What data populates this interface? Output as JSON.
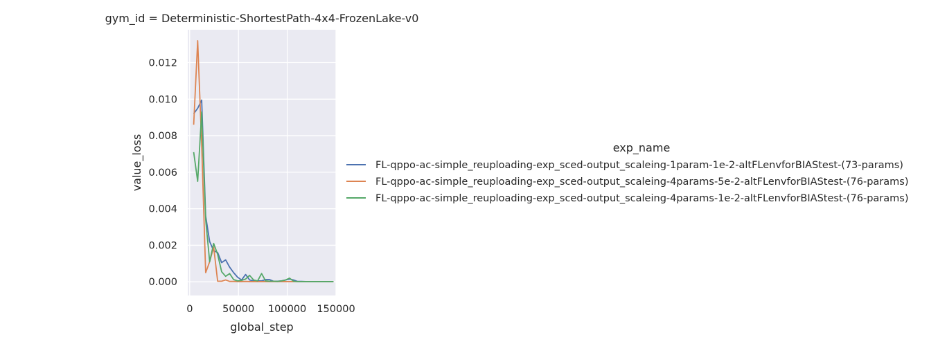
{
  "chart_data": {
    "type": "line",
    "title": "gym_id = Deterministic-ShortestPath-4x4-FrozenLake-v0",
    "xlabel": "global_step",
    "ylabel": "value_loss",
    "xlim": [
      -2000,
      150000
    ],
    "ylim": [
      -0.00075,
      0.0138
    ],
    "xticks": [
      0,
      50000,
      100000,
      150000
    ],
    "xtick_labels": [
      "0",
      "50000",
      "100000",
      "150000"
    ],
    "yticks": [
      0,
      0.002,
      0.004,
      0.006,
      0.008,
      0.01,
      0.012
    ],
    "ytick_labels": [
      "0.000",
      "0.002",
      "0.004",
      "0.006",
      "0.008",
      "0.010",
      "0.012"
    ],
    "grid": true,
    "legend_title": "exp_name",
    "legend_position": "right",
    "series": [
      {
        "name": "FL-qppo-ac-simple_reuploading-exp_sced-output_scaleing-1param-1e-2-altFLenvforBIAStest-(73-params)",
        "color": "#4c72b0",
        "x": [
          4096,
          8192,
          12288,
          16384,
          20480,
          24576,
          28672,
          32768,
          36864,
          40960,
          45056,
          49152,
          53248,
          57344,
          61440,
          65536,
          69632,
          73728,
          77824,
          81920,
          86016,
          90112,
          94208,
          98304,
          102400,
          106496,
          110592,
          114688,
          118784,
          122880,
          126976,
          131072,
          135168,
          139264,
          143360,
          147456
        ],
        "y": [
          0.0092,
          0.0095,
          0.00995,
          0.0036,
          0.0022,
          0.0017,
          0.0016,
          0.00105,
          0.0012,
          0.0008,
          0.0005,
          0.00025,
          0.0001,
          0.0004,
          0.0001,
          5e-05,
          5e-05,
          5e-05,
          0.00012,
          0.00012,
          3e-05,
          3e-05,
          5e-05,
          0.0001,
          0.00015,
          0.0001,
          2e-05,
          2e-05,
          1e-05,
          1e-05,
          1e-05,
          1e-05,
          1e-05,
          1e-05,
          1e-05,
          1e-05
        ]
      },
      {
        "name": "FL-qppo-ac-simple_reuploading-exp_sced-output_scaleing-4params-5e-2-altFLenvforBIAStest-(76-params)",
        "color": "#dd8452",
        "x": [
          4096,
          8192,
          12288,
          16384,
          20480,
          24576,
          28672,
          32768,
          36864,
          40960,
          45056,
          49152,
          53248,
          57344,
          61440,
          65536,
          69632,
          73728,
          77824,
          81920,
          86016,
          90112,
          94208,
          98304,
          102400,
          106496,
          110592,
          114688,
          118784,
          122880,
          126976,
          131072,
          135168,
          139264,
          143360,
          147456
        ],
        "y": [
          0.0086,
          0.0132,
          0.0075,
          0.0005,
          0.0011,
          0.0019,
          3e-05,
          3e-05,
          0.0001,
          2e-05,
          2e-05,
          1e-05,
          1e-05,
          2e-05,
          1e-05,
          1e-05,
          1e-05,
          1e-05,
          1e-05,
          1e-05,
          1e-05,
          1e-05,
          1e-05,
          1e-05,
          1e-05,
          1e-05,
          1e-05,
          1e-05,
          1e-05,
          1e-05,
          1e-05,
          1e-05,
          1e-05,
          1e-05,
          1e-05,
          1e-05
        ]
      },
      {
        "name": "FL-qppo-ac-simple_reuploading-exp_sced-output_scaleing-4params-1e-2-altFLenvforBIAStest-(76-params)",
        "color": "#55a868",
        "x": [
          4096,
          8192,
          12288,
          16384,
          20480,
          24576,
          28672,
          32768,
          36864,
          40960,
          45056,
          49152,
          53248,
          57344,
          61440,
          65536,
          69632,
          73728,
          77824,
          81920,
          86016,
          90112,
          94208,
          98304,
          102400,
          106496,
          110592,
          114688,
          118784,
          122880,
          126976,
          131072,
          135168,
          139264,
          143360,
          147456
        ],
        "y": [
          0.0071,
          0.0055,
          0.0093,
          0.0034,
          0.0011,
          0.0021,
          0.0015,
          0.00055,
          0.0003,
          0.00045,
          0.00012,
          5e-05,
          8e-05,
          0.00015,
          0.00035,
          0.0001,
          5e-05,
          0.00045,
          5e-05,
          3e-05,
          3e-05,
          2e-05,
          5e-05,
          0.0001,
          0.0002,
          3e-05,
          1e-05,
          1e-05,
          1e-05,
          1e-05,
          1e-05,
          1e-05,
          1e-05,
          1e-05,
          1e-05,
          1e-05
        ]
      }
    ]
  }
}
